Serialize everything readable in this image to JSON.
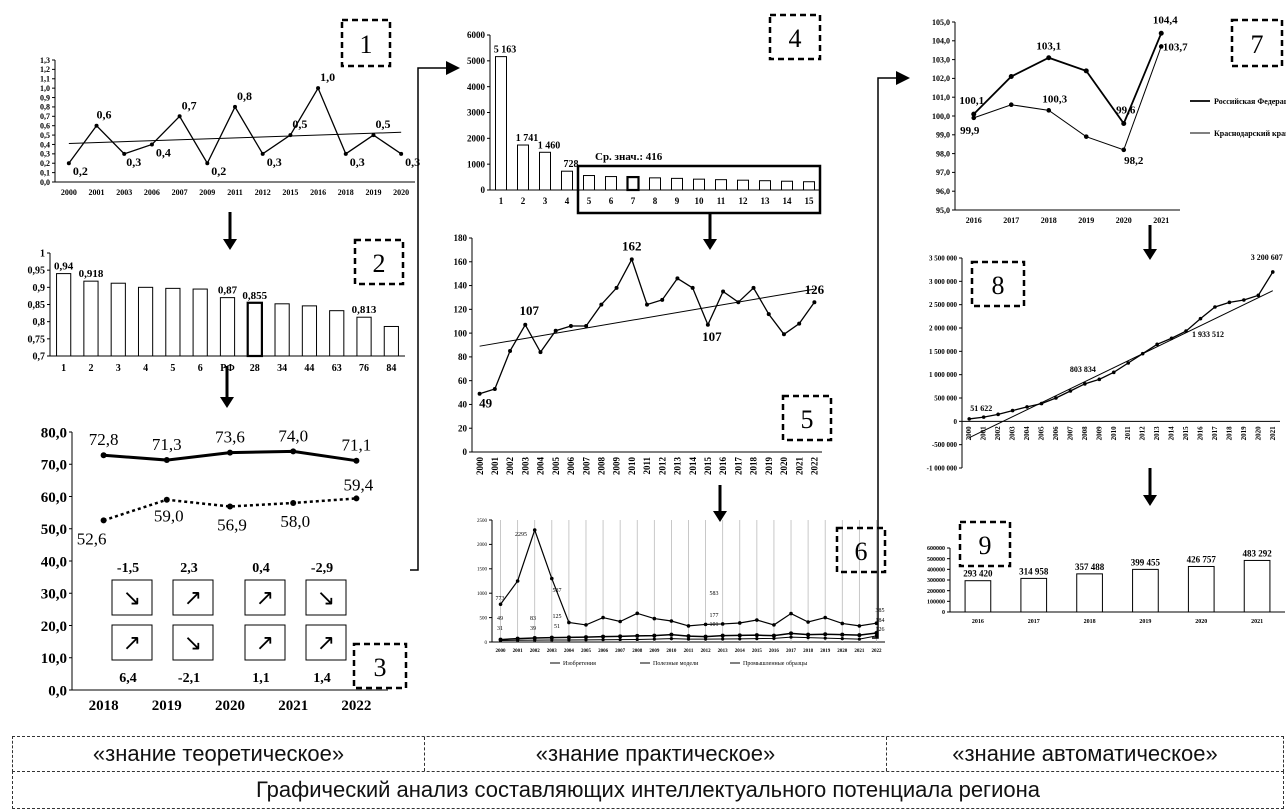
{
  "footer": {
    "col1": "«знание теоретическое»",
    "col2": "«знание практическое»",
    "col3": "«знание автоматическое»",
    "caption": "Графический анализ составляющих интеллектуального потенциала региона"
  },
  "chart_data": [
    {
      "id": "1",
      "type": "line",
      "categories": [
        "2000",
        "2001",
        "2003",
        "2006",
        "2007",
        "2009",
        "2011",
        "2012",
        "2015",
        "2016",
        "2018",
        "2019",
        "2020"
      ],
      "values": [
        0.2,
        0.6,
        0.3,
        0.4,
        0.7,
        0.2,
        0.8,
        0.3,
        0.5,
        1.0,
        0.3,
        0.5,
        0.3
      ],
      "data_labels": [
        "0,2",
        "0,6",
        "0,3",
        "0,4",
        "0,7",
        "0,2",
        "0,8",
        "0,3",
        "0,5",
        "1,0",
        "0,3",
        "0,5",
        "0,3"
      ],
      "yticks": [
        "0,0",
        "0,1",
        "0,2",
        "0,3",
        "0,4",
        "0,5",
        "0,6",
        "0,7",
        "0,8",
        "0,9",
        "1,0",
        "1,1",
        "1,2",
        "1,3"
      ],
      "ylim": [
        0,
        1.3
      ],
      "trend": [
        0.41,
        0.53
      ]
    },
    {
      "id": "2",
      "type": "bar",
      "categories": [
        "1",
        "2",
        "3",
        "4",
        "5",
        "6",
        "РФ",
        "28",
        "34",
        "44",
        "63",
        "76",
        "84"
      ],
      "values": [
        0.94,
        0.918,
        0.912,
        0.9,
        0.897,
        0.895,
        0.87,
        0.855,
        0.852,
        0.846,
        0.832,
        0.813,
        0.786
      ],
      "data_labels": [
        "0,94",
        "0,918",
        "",
        "",
        "",
        "",
        "0,87",
        "0,855",
        "",
        "",
        "",
        "0,813",
        ""
      ],
      "yticks": [
        "0,7",
        "0,75",
        "0,8",
        "0,85",
        "0,9",
        "0,95",
        "1"
      ],
      "ylim": [
        0.7,
        1.0
      ]
    },
    {
      "id": "3",
      "type": "line",
      "categories": [
        "2018",
        "2019",
        "2020",
        "2021",
        "2022"
      ],
      "series": [
        {
          "values": [
            72.8,
            71.3,
            73.6,
            74.0,
            71.1
          ],
          "data_labels": [
            "72,8",
            "71,3",
            "73,6",
            "74,0",
            "71,1"
          ]
        },
        {
          "values": [
            52.6,
            59.0,
            56.9,
            58.0,
            59.4
          ],
          "data_labels": [
            "52,6",
            "59,0",
            "56,9",
            "58,0",
            "59,4"
          ]
        }
      ],
      "yticks": [
        "0,0",
        "10,0",
        "20,0",
        "30,0",
        "40,0",
        "50,0",
        "60,0",
        "70,0",
        "80,0"
      ],
      "ylim": [
        0,
        80
      ],
      "change_top": [
        "-1,5",
        "2,3",
        "0,4",
        "-2,9"
      ],
      "change_bottom": [
        "6,4",
        "-2,1",
        "1,1",
        "1,4"
      ],
      "arrows_top": [
        "↘",
        "↗",
        "↗",
        "↘"
      ],
      "arrows_bottom": [
        "↗",
        "↘",
        "↗",
        "↗"
      ]
    },
    {
      "id": "4",
      "type": "bar",
      "categories": [
        "1",
        "2",
        "3",
        "4",
        "5",
        "6",
        "7",
        "8",
        "9",
        "10",
        "11",
        "12",
        "13",
        "14",
        "15"
      ],
      "values": [
        5163,
        1741,
        1460,
        728,
        560,
        520,
        500,
        470,
        450,
        420,
        400,
        380,
        360,
        340,
        320
      ],
      "data_labels": [
        "5 163",
        "1 741",
        "1 460",
        "728",
        "",
        "",
        "",
        "",
        "",
        "",
        "",
        "",
        "",
        "",
        ""
      ],
      "yticks": [
        "0",
        "1000",
        "2000",
        "3000",
        "4000",
        "5000",
        "6000"
      ],
      "ylim": [
        0,
        6000
      ],
      "annotation": "Ср. знач.: 416"
    },
    {
      "id": "5",
      "type": "line",
      "categories": [
        "2000",
        "2001",
        "2002",
        "2003",
        "2004",
        "2005",
        "2006",
        "2007",
        "2008",
        "2009",
        "2010",
        "2011",
        "2012",
        "2013",
        "2014",
        "2015",
        "2016",
        "2017",
        "2018",
        "2019",
        "2020",
        "2021",
        "2022"
      ],
      "values": [
        49,
        53,
        85,
        107,
        84,
        102,
        106,
        106,
        124,
        138,
        162,
        124,
        128,
        146,
        138,
        107,
        135,
        126,
        138,
        116,
        99,
        108,
        126
      ],
      "labels": {
        "0": "49",
        "3": "107",
        "10": "162",
        "15": "107",
        "22": "126"
      },
      "yticks": [
        "0",
        "20",
        "40",
        "60",
        "80",
        "100",
        "120",
        "140",
        "160",
        "180"
      ],
      "ylim": [
        0,
        180
      ],
      "trend": [
        89,
        137
      ]
    },
    {
      "id": "6",
      "type": "line",
      "categories": [
        "2000",
        "2001",
        "2002",
        "2003",
        "2004",
        "2005",
        "2006",
        "2007",
        "2008",
        "2009",
        "2010",
        "2011",
        "2012",
        "2013",
        "2014",
        "2015",
        "2016",
        "2017",
        "2018",
        "2019",
        "2020",
        "2021",
        "2022"
      ],
      "series": [
        {
          "name": "Изобретения",
          "values": [
            773,
            1250,
            2295,
            1300,
            400,
            350,
            500,
            420,
            587,
            480,
            430,
            330,
            360,
            370,
            390,
            450,
            350,
            583,
            410,
            500,
            380,
            330,
            385
          ]
        },
        {
          "name": "Полезные модели",
          "values": [
            49,
            70,
            83,
            90,
            95,
            100,
            110,
            115,
            125,
            130,
            150,
            120,
            110,
            130,
            135,
            140,
            130,
            177,
            150,
            160,
            150,
            140,
            184
          ]
        },
        {
          "name": "Промышленные образцы",
          "values": [
            31,
            35,
            39,
            40,
            42,
            44,
            46,
            48,
            51,
            60,
            70,
            60,
            58,
            62,
            65,
            70,
            75,
            101,
            90,
            80,
            70,
            60,
            126
          ]
        }
      ],
      "point_labels": [
        "773",
        "49",
        "31",
        "2295",
        "83",
        "39",
        "587",
        "125",
        "51",
        "583",
        "177",
        "101",
        "385",
        "184",
        "126"
      ],
      "yticks": [
        "0",
        "500",
        "1000",
        "1500",
        "2000",
        "2500"
      ],
      "ylim": [
        0,
        2500
      ]
    },
    {
      "id": "7",
      "type": "line",
      "categories": [
        "2016",
        "2017",
        "2018",
        "2019",
        "2020",
        "2021"
      ],
      "series": [
        {
          "name": "Российская Федерация",
          "values": [
            100.1,
            102.1,
            103.1,
            102.4,
            99.6,
            104.4
          ],
          "data_labels": [
            "100,1",
            "",
            "103,1",
            "",
            "99,6",
            "104,4"
          ]
        },
        {
          "name": "Краснодарский край",
          "values": [
            99.9,
            100.6,
            100.3,
            98.9,
            98.2,
            103.7
          ],
          "data_labels": [
            "99,9",
            "",
            "100,3",
            "",
            "98,2",
            "103,7"
          ]
        }
      ],
      "yticks": [
        "95,0",
        "96,0",
        "97,0",
        "98,0",
        "99,0",
        "100,0",
        "101,0",
        "102,0",
        "103,0",
        "104,0",
        "105,0"
      ],
      "ylim": [
        95,
        105
      ]
    },
    {
      "id": "8",
      "type": "line",
      "categories": [
        "2000",
        "2001",
        "2002",
        "2003",
        "2004",
        "2005",
        "2006",
        "2007",
        "2008",
        "2009",
        "2010",
        "2011",
        "2012",
        "2013",
        "2014",
        "2015",
        "2016",
        "2017",
        "2018",
        "2019",
        "2020",
        "2021"
      ],
      "values": [
        51622,
        90000,
        150000,
        230000,
        310000,
        380000,
        500000,
        650000,
        803834,
        900000,
        1050000,
        1250000,
        1450000,
        1650000,
        1780000,
        1933512,
        2200000,
        2450000,
        2550000,
        2600000,
        2700000,
        3200607
      ],
      "labels": {
        "0": "51 622",
        "8": "803 834",
        "15": "1 933 512",
        "21": "3 200 607"
      },
      "yticks": [
        "-1 000 000",
        "-500 000",
        "0",
        "500 000",
        "1 000 000",
        "1 500 000",
        "2 000 000",
        "2 500 000",
        "3 000 000",
        "3 500 000"
      ],
      "ylim": [
        -1000000,
        3500000
      ],
      "trend": [
        -350000,
        2800000
      ]
    },
    {
      "id": "9",
      "type": "bar",
      "categories": [
        "2016",
        "2017",
        "2018",
        "2019",
        "2020",
        "2021"
      ],
      "values": [
        293420,
        314958,
        357488,
        399455,
        426757,
        483292
      ],
      "data_labels": [
        "293 420",
        "314 958",
        "357 488",
        "399 455",
        "426 757",
        "483 292"
      ],
      "yticks": [
        "0",
        "100000",
        "200000",
        "300000",
        "400000",
        "500000",
        "600000"
      ],
      "ylim": [
        0,
        600000
      ]
    }
  ]
}
